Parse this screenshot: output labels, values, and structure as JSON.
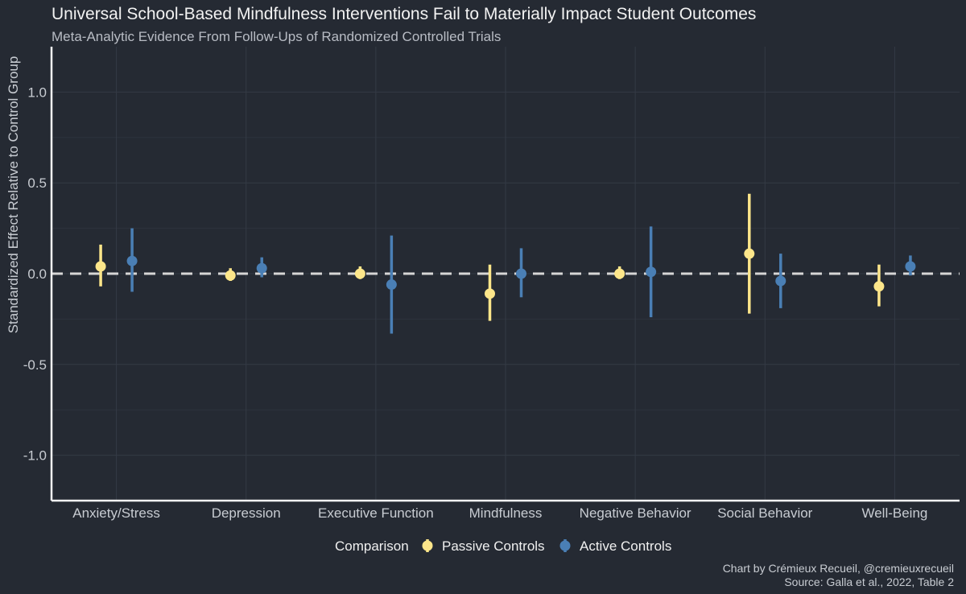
{
  "chart_data": {
    "type": "pointrange",
    "title": "Universal School-Based Mindfulness Interventions Fail to Materially Impact Student Outcomes",
    "subtitle": "Meta-Analytic Evidence From Follow-Ups of Randomized Controlled Trials",
    "xlabel": "",
    "ylabel": "Standardized Effect Relative to Control Group",
    "ylim": [
      -1.25,
      1.25
    ],
    "yticks": [
      -1.0,
      -0.5,
      0.0,
      0.5,
      1.0
    ],
    "ytick_labels": [
      "-1.0",
      "-0.5",
      "0.0",
      "0.5",
      "1.0"
    ],
    "reference_line": 0.0,
    "categories": [
      "Anxiety/Stress",
      "Depression",
      "Executive Function",
      "Mindfulness",
      "Negative Behavior",
      "Social Behavior",
      "Well-Being"
    ],
    "series": [
      {
        "name": "Passive Controls",
        "color": "#fde68a",
        "estimate": [
          0.04,
          -0.01,
          0.0,
          -0.11,
          0.0,
          0.11,
          -0.07
        ],
        "lower": [
          -0.07,
          -0.04,
          -0.03,
          -0.26,
          -0.03,
          -0.22,
          -0.18
        ],
        "upper": [
          0.16,
          0.03,
          0.04,
          0.05,
          0.04,
          0.44,
          0.05
        ]
      },
      {
        "name": "Active Controls",
        "color": "#4a7fb5",
        "estimate": [
          0.07,
          0.03,
          -0.06,
          0.0,
          0.01,
          -0.04,
          0.04
        ],
        "lower": [
          -0.1,
          -0.02,
          -0.33,
          -0.13,
          -0.24,
          -0.19,
          -0.01
        ],
        "upper": [
          0.25,
          0.09,
          0.21,
          0.14,
          0.26,
          0.11,
          0.1
        ]
      }
    ],
    "legend": {
      "title": "Comparison",
      "position": "bottom"
    },
    "caption_lines": [
      "Chart by Crémieux Recueil, @cremieuxrecueil",
      "Source: Galla et al., 2022, Table 2"
    ]
  }
}
